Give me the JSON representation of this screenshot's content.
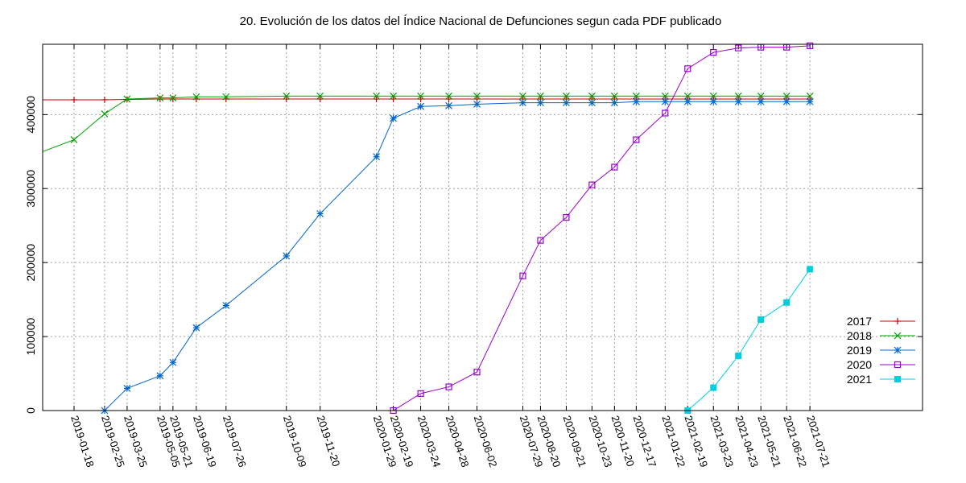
{
  "chart_data": {
    "type": "line",
    "title": "20. Evolución de los datos del Índice Nacional de Defunciones segun cada PDF publicado",
    "xlabel": "",
    "ylabel": "",
    "x_type": "date",
    "xlim": [
      "2018-12-10",
      "2021-12-08"
    ],
    "ylim": [
      0,
      495000
    ],
    "y_ticks": [
      0,
      100000,
      200000,
      300000,
      400000
    ],
    "x_ticks": [
      "2019-01-18",
      "2019-02-25",
      "2019-03-25",
      "2019-05-05",
      "2019-05-21",
      "2019-06-19",
      "2019-07-26",
      "2019-10-09",
      "2019-11-20",
      "2020-01-29",
      "2020-02-19",
      "2020-03-24",
      "2020-04-28",
      "2020-06-02",
      "2020-07-29",
      "2020-08-20",
      "2020-09-21",
      "2020-10-23",
      "2020-11-20",
      "2020-12-17",
      "2021-01-22",
      "2021-02-19",
      "2021-03-23",
      "2021-04-23",
      "2021-05-21",
      "2021-06-22",
      "2021-07-21"
    ],
    "grid": true,
    "legend_position": "bottom-right",
    "series": [
      {
        "name": "2017",
        "color": "#cc0000",
        "marker": "plus",
        "points": [
          [
            "2018-12-10",
            420000
          ],
          [
            "2019-01-18",
            420000
          ],
          [
            "2019-02-25",
            420000
          ],
          [
            "2019-03-25",
            420500
          ],
          [
            "2019-05-05",
            421000
          ],
          [
            "2019-05-21",
            421000
          ],
          [
            "2019-06-19",
            421000
          ],
          [
            "2019-07-26",
            421000
          ],
          [
            "2019-10-09",
            421000
          ],
          [
            "2019-11-20",
            421000
          ],
          [
            "2020-01-29",
            421000
          ],
          [
            "2020-02-19",
            421000
          ],
          [
            "2020-03-24",
            421000
          ],
          [
            "2020-04-28",
            421000
          ],
          [
            "2020-06-02",
            421000
          ],
          [
            "2020-07-29",
            421000
          ],
          [
            "2020-08-20",
            421000
          ],
          [
            "2020-09-21",
            421000
          ],
          [
            "2020-10-23",
            421000
          ],
          [
            "2020-11-20",
            421000
          ],
          [
            "2020-12-17",
            421000
          ],
          [
            "2021-01-22",
            421000
          ],
          [
            "2021-02-19",
            421000
          ],
          [
            "2021-03-23",
            421000
          ],
          [
            "2021-04-23",
            421000
          ],
          [
            "2021-05-21",
            421000
          ],
          [
            "2021-06-22",
            421000
          ],
          [
            "2021-07-21",
            421000
          ]
        ]
      },
      {
        "name": "2018",
        "color": "#00a000",
        "marker": "cross",
        "points": [
          [
            "2018-12-10",
            350000
          ],
          [
            "2019-01-18",
            366000
          ],
          [
            "2019-02-25",
            401000
          ],
          [
            "2019-03-25",
            421000
          ],
          [
            "2019-05-05",
            422500
          ],
          [
            "2019-05-21",
            422500
          ],
          [
            "2019-06-19",
            424000
          ],
          [
            "2019-07-26",
            424000
          ],
          [
            "2019-10-09",
            425000
          ],
          [
            "2019-11-20",
            425000
          ],
          [
            "2020-01-29",
            425000
          ],
          [
            "2020-02-19",
            425000
          ],
          [
            "2020-03-24",
            425000
          ],
          [
            "2020-04-28",
            425000
          ],
          [
            "2020-06-02",
            425000
          ],
          [
            "2020-07-29",
            425000
          ],
          [
            "2020-08-20",
            425000
          ],
          [
            "2020-09-21",
            425000
          ],
          [
            "2020-10-23",
            425000
          ],
          [
            "2020-11-20",
            425000
          ],
          [
            "2020-12-17",
            425000
          ],
          [
            "2021-01-22",
            425000
          ],
          [
            "2021-02-19",
            425000
          ],
          [
            "2021-03-23",
            425000
          ],
          [
            "2021-04-23",
            425000
          ],
          [
            "2021-05-21",
            425000
          ],
          [
            "2021-06-22",
            425000
          ],
          [
            "2021-07-21",
            425000
          ]
        ]
      },
      {
        "name": "2019",
        "color": "#0066cc",
        "marker": "star",
        "points": [
          [
            "2019-02-25",
            0
          ],
          [
            "2019-03-25",
            30000
          ],
          [
            "2019-05-05",
            47000
          ],
          [
            "2019-05-21",
            65000
          ],
          [
            "2019-06-19",
            112000
          ],
          [
            "2019-07-26",
            142000
          ],
          [
            "2019-10-09",
            209000
          ],
          [
            "2019-11-20",
            266000
          ],
          [
            "2020-01-29",
            343000
          ],
          [
            "2020-02-19",
            395000
          ],
          [
            "2020-03-24",
            411000
          ],
          [
            "2020-04-28",
            412000
          ],
          [
            "2020-06-02",
            414000
          ],
          [
            "2020-07-29",
            416000
          ],
          [
            "2020-08-20",
            416000
          ],
          [
            "2020-09-21",
            416000
          ],
          [
            "2020-10-23",
            416000
          ],
          [
            "2020-11-20",
            416000
          ],
          [
            "2020-12-17",
            417500
          ],
          [
            "2021-01-22",
            417500
          ],
          [
            "2021-02-19",
            417500
          ],
          [
            "2021-03-23",
            417500
          ],
          [
            "2021-04-23",
            417500
          ],
          [
            "2021-05-21",
            417500
          ],
          [
            "2021-06-22",
            417500
          ],
          [
            "2021-07-21",
            417500
          ]
        ]
      },
      {
        "name": "2020",
        "color": "#9900cc",
        "marker": "square-open",
        "points": [
          [
            "2020-02-19",
            0
          ],
          [
            "2020-03-24",
            23000
          ],
          [
            "2020-04-28",
            32000
          ],
          [
            "2020-06-02",
            52000
          ],
          [
            "2020-07-29",
            182000
          ],
          [
            "2020-08-20",
            230000
          ],
          [
            "2020-09-21",
            261000
          ],
          [
            "2020-10-23",
            305000
          ],
          [
            "2020-11-20",
            329000
          ],
          [
            "2020-12-17",
            366000
          ],
          [
            "2021-01-22",
            402000
          ],
          [
            "2021-02-19",
            462000
          ],
          [
            "2021-03-23",
            484000
          ],
          [
            "2021-04-23",
            490000
          ],
          [
            "2021-05-21",
            491000
          ],
          [
            "2021-06-22",
            491000
          ],
          [
            "2021-07-21",
            493000
          ]
        ]
      },
      {
        "name": "2021",
        "color": "#00cfe0",
        "marker": "square-filled",
        "points": [
          [
            "2021-02-19",
            0
          ],
          [
            "2021-03-23",
            31000
          ],
          [
            "2021-04-23",
            74000
          ],
          [
            "2021-05-21",
            123000
          ],
          [
            "2021-06-22",
            146000
          ],
          [
            "2021-07-21",
            191000
          ]
        ]
      }
    ]
  }
}
